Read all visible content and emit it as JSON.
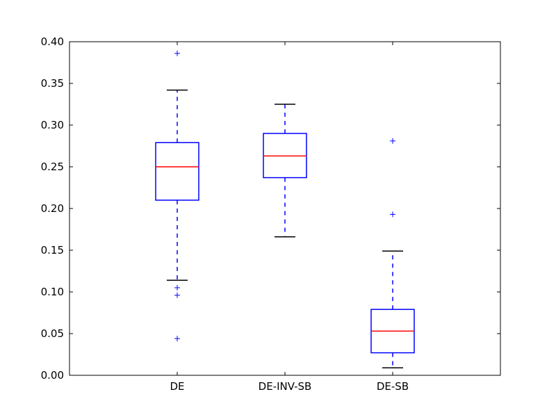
{
  "chart_data": {
    "type": "box",
    "categories": [
      "DE",
      "DE-INV-SB",
      "DE-SB"
    ],
    "ylim": [
      0.0,
      0.4
    ],
    "yticks": [
      "0.00",
      "0.05",
      "0.10",
      "0.15",
      "0.20",
      "0.25",
      "0.30",
      "0.35",
      "0.40"
    ],
    "boxes": [
      {
        "name": "DE",
        "whisker_low": 0.114,
        "q1": 0.21,
        "median": 0.25,
        "q3": 0.279,
        "whisker_high": 0.342,
        "outliers": [
          0.386,
          0.105,
          0.096,
          0.044
        ]
      },
      {
        "name": "DE-INV-SB",
        "whisker_low": 0.166,
        "q1": 0.237,
        "median": 0.263,
        "q3": 0.29,
        "whisker_high": 0.325,
        "outliers": []
      },
      {
        "name": "DE-SB",
        "whisker_low": 0.009,
        "q1": 0.027,
        "median": 0.053,
        "q3": 0.079,
        "whisker_high": 0.149,
        "outliers": [
          0.281,
          0.193
        ]
      }
    ],
    "grid": false,
    "colors": {
      "box": "#0000ff",
      "median": "#ff0000",
      "whisker": "#0000ff",
      "cap": "#000000",
      "outlier": "#0000ff",
      "axes": "#000000"
    }
  }
}
